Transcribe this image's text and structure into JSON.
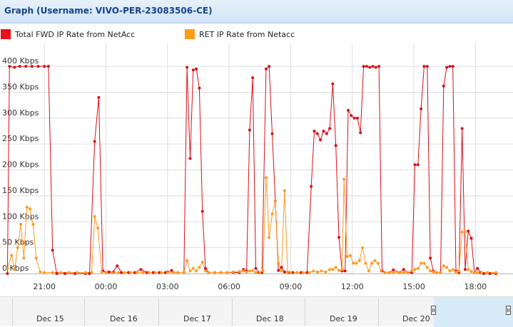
{
  "window": {
    "title": "Graph (Username: VIVO-PER-23083506-CE)"
  },
  "legend": [
    {
      "label": "Total FWD IP Rate from NetAcc",
      "color": "#e8101a"
    },
    {
      "label": "RET IP Rate from Netacc",
      "color": "#ff9c1a"
    }
  ],
  "chart_data": {
    "type": "line",
    "y_ticks": [
      "0 Kbps",
      "50 Kbps",
      "100 Kbps",
      "150 Kbps",
      "200 Kbps",
      "250 Kbps",
      "300 Kbps",
      "350 Kbps",
      "400 Kbps"
    ],
    "ylim": [
      0,
      430
    ],
    "x_ticks": [
      "21:00",
      "00:00",
      "03:00",
      "06:00",
      "09:00",
      "12:00",
      "15:00",
      "18:00"
    ],
    "xlim_hours": [
      -4.8,
      16.5
    ],
    "grid": true,
    "series": [
      {
        "name": "Total FWD IP Rate from NetAcc",
        "color": "#d8101a",
        "points": [
          [
            -4.8,
            0
          ],
          [
            -4.7,
            400
          ],
          [
            -4.45,
            398
          ],
          [
            -4.2,
            400
          ],
          [
            -3.9,
            400
          ],
          [
            -3.6,
            400
          ],
          [
            -3.3,
            400
          ],
          [
            -3.0,
            400
          ],
          [
            -2.8,
            400
          ],
          [
            -2.6,
            45
          ],
          [
            -2.4,
            0
          ],
          [
            -2.0,
            0
          ],
          [
            -1.5,
            0
          ],
          [
            -1.0,
            0
          ],
          [
            -0.8,
            0
          ],
          [
            -0.55,
            255
          ],
          [
            -0.35,
            340
          ],
          [
            -0.15,
            5
          ],
          [
            0.15,
            3
          ],
          [
            0.35,
            3
          ],
          [
            0.55,
            15
          ],
          [
            0.75,
            2
          ],
          [
            1.1,
            2
          ],
          [
            1.4,
            2
          ],
          [
            1.7,
            8
          ],
          [
            2.0,
            2
          ],
          [
            2.3,
            2
          ],
          [
            2.6,
            2
          ],
          [
            2.9,
            2
          ],
          [
            3.0,
            3
          ],
          [
            3.2,
            6
          ],
          [
            3.3,
            2
          ],
          [
            3.5,
            2
          ],
          [
            3.8,
            2
          ],
          [
            3.95,
            398
          ],
          [
            4.1,
            222
          ],
          [
            4.25,
            393
          ],
          [
            4.4,
            395
          ],
          [
            4.55,
            358
          ],
          [
            4.7,
            120
          ],
          [
            4.85,
            10
          ],
          [
            5.0,
            2
          ],
          [
            5.3,
            2
          ],
          [
            5.6,
            2
          ],
          [
            5.9,
            2
          ],
          [
            6.2,
            2
          ],
          [
            6.5,
            2
          ],
          [
            6.7,
            8
          ],
          [
            6.85,
            5
          ],
          [
            7.0,
            277
          ],
          [
            7.15,
            378
          ],
          [
            7.3,
            10
          ],
          [
            7.45,
            2
          ],
          [
            7.6,
            2
          ],
          [
            7.8,
            395
          ],
          [
            7.95,
            400
          ],
          [
            8.1,
            270
          ],
          [
            8.25,
            140
          ],
          [
            8.4,
            6
          ],
          [
            8.55,
            12
          ],
          [
            8.7,
            3
          ],
          [
            8.9,
            2
          ],
          [
            9.1,
            2
          ],
          [
            9.3,
            2
          ],
          [
            9.5,
            2
          ],
          [
            9.8,
            2
          ],
          [
            10.0,
            168
          ],
          [
            10.15,
            275
          ],
          [
            10.3,
            270
          ],
          [
            10.45,
            258
          ],
          [
            10.6,
            275
          ],
          [
            10.75,
            270
          ],
          [
            10.9,
            280
          ],
          [
            11.05,
            366
          ],
          [
            11.2,
            247
          ],
          [
            11.35,
            70
          ],
          [
            11.5,
            5
          ],
          [
            11.65,
            5
          ],
          [
            11.8,
            315
          ],
          [
            11.95,
            305
          ],
          [
            12.1,
            300
          ],
          [
            12.25,
            300
          ],
          [
            12.4,
            272
          ],
          [
            12.55,
            400
          ],
          [
            12.7,
            400
          ],
          [
            12.85,
            398
          ],
          [
            13.0,
            400
          ],
          [
            13.15,
            398
          ],
          [
            13.3,
            400
          ],
          [
            13.45,
            5
          ],
          [
            13.6,
            2
          ],
          [
            13.8,
            2
          ],
          [
            14.0,
            7
          ],
          [
            14.3,
            2
          ],
          [
            14.5,
            8
          ],
          [
            14.7,
            2
          ],
          [
            14.9,
            2
          ],
          [
            15.05,
            210
          ],
          [
            15.2,
            210
          ],
          [
            15.35,
            318
          ],
          [
            15.5,
            400
          ],
          [
            15.65,
            400
          ],
          [
            15.8,
            30
          ],
          [
            15.95,
            5
          ],
          [
            16.1,
            2
          ],
          [
            16.3,
            2
          ],
          [
            16.45,
            362
          ],
          [
            16.6,
            398
          ],
          [
            16.75,
            400
          ],
          [
            16.9,
            400
          ],
          [
            17.05,
            5
          ],
          [
            17.2,
            2
          ],
          [
            17.35,
            280
          ],
          [
            17.5,
            8
          ],
          [
            17.65,
            82
          ],
          [
            17.8,
            68
          ],
          [
            17.95,
            2
          ],
          [
            18.1,
            10
          ],
          [
            18.25,
            2
          ],
          [
            18.4,
            0
          ],
          [
            18.7,
            0
          ],
          [
            19.0,
            0
          ]
        ]
      },
      {
        "name": "RET IP Rate from Netacc",
        "color": "#ff9a22",
        "points": [
          [
            -4.8,
            10
          ],
          [
            -4.6,
            35
          ],
          [
            -4.45,
            8
          ],
          [
            -4.3,
            50
          ],
          [
            -4.15,
            95
          ],
          [
            -4.0,
            30
          ],
          [
            -3.85,
            128
          ],
          [
            -3.7,
            125
          ],
          [
            -3.55,
            95
          ],
          [
            -3.4,
            30
          ],
          [
            -3.2,
            3
          ],
          [
            -3.0,
            2
          ],
          [
            -2.6,
            2
          ],
          [
            -2.2,
            2
          ],
          [
            -1.8,
            2
          ],
          [
            -1.4,
            2
          ],
          [
            -1.0,
            2
          ],
          [
            -0.7,
            2
          ],
          [
            -0.55,
            110
          ],
          [
            -0.4,
            88
          ],
          [
            -0.2,
            3
          ],
          [
            0.0,
            2
          ],
          [
            0.3,
            2
          ],
          [
            0.6,
            2
          ],
          [
            0.9,
            2
          ],
          [
            1.2,
            2
          ],
          [
            1.5,
            2
          ],
          [
            1.8,
            2
          ],
          [
            2.1,
            2
          ],
          [
            2.4,
            2
          ],
          [
            2.7,
            2
          ],
          [
            3.0,
            2
          ],
          [
            3.3,
            2
          ],
          [
            3.5,
            2
          ],
          [
            3.8,
            2
          ],
          [
            3.95,
            25
          ],
          [
            4.1,
            5
          ],
          [
            4.25,
            10
          ],
          [
            4.4,
            5
          ],
          [
            4.55,
            12
          ],
          [
            4.7,
            22
          ],
          [
            4.85,
            5
          ],
          [
            5.0,
            2
          ],
          [
            5.3,
            2
          ],
          [
            5.6,
            2
          ],
          [
            5.9,
            2
          ],
          [
            6.2,
            3
          ],
          [
            6.5,
            4
          ],
          [
            6.7,
            5
          ],
          [
            6.85,
            3
          ],
          [
            7.0,
            5
          ],
          [
            7.15,
            6
          ],
          [
            7.3,
            2
          ],
          [
            7.5,
            2
          ],
          [
            7.65,
            5
          ],
          [
            7.8,
            185
          ],
          [
            7.95,
            70
          ],
          [
            8.1,
            115
          ],
          [
            8.25,
            140
          ],
          [
            8.4,
            20
          ],
          [
            8.55,
            5
          ],
          [
            8.7,
            160
          ],
          [
            8.85,
            3
          ],
          [
            9.0,
            2
          ],
          [
            9.3,
            2
          ],
          [
            9.6,
            2
          ],
          [
            9.9,
            2
          ],
          [
            10.1,
            5
          ],
          [
            10.3,
            3
          ],
          [
            10.5,
            5
          ],
          [
            10.7,
            3
          ],
          [
            10.9,
            8
          ],
          [
            11.05,
            8
          ],
          [
            11.2,
            12
          ],
          [
            11.35,
            6
          ],
          [
            11.5,
            8
          ],
          [
            11.6,
            182
          ],
          [
            11.75,
            33
          ],
          [
            11.9,
            35
          ],
          [
            12.05,
            20
          ],
          [
            12.2,
            20
          ],
          [
            12.35,
            25
          ],
          [
            12.5,
            50
          ],
          [
            12.65,
            20
          ],
          [
            12.8,
            5
          ],
          [
            12.95,
            20
          ],
          [
            13.1,
            25
          ],
          [
            13.25,
            20
          ],
          [
            13.4,
            5
          ],
          [
            13.6,
            2
          ],
          [
            13.8,
            2
          ],
          [
            14.0,
            2
          ],
          [
            14.3,
            2
          ],
          [
            14.5,
            2
          ],
          [
            14.7,
            2
          ],
          [
            14.9,
            5
          ],
          [
            15.05,
            8
          ],
          [
            15.2,
            10
          ],
          [
            15.35,
            20
          ],
          [
            15.5,
            20
          ],
          [
            15.65,
            12
          ],
          [
            15.8,
            5
          ],
          [
            15.95,
            3
          ],
          [
            16.1,
            2
          ],
          [
            16.3,
            2
          ],
          [
            16.45,
            15
          ],
          [
            16.6,
            12
          ],
          [
            16.75,
            5
          ],
          [
            16.9,
            8
          ],
          [
            17.05,
            3
          ],
          [
            17.2,
            5
          ],
          [
            17.35,
            80
          ],
          [
            17.5,
            80
          ],
          [
            17.65,
            8
          ],
          [
            17.8,
            4
          ],
          [
            17.95,
            2
          ],
          [
            18.1,
            2
          ],
          [
            18.3,
            2
          ],
          [
            18.6,
            2
          ],
          [
            19.0,
            2
          ]
        ]
      }
    ]
  },
  "navigator": {
    "days": [
      "Dec 15",
      "Dec 16",
      "Dec 17",
      "Dec 18",
      "Dec 19",
      "Dec 20"
    ]
  }
}
